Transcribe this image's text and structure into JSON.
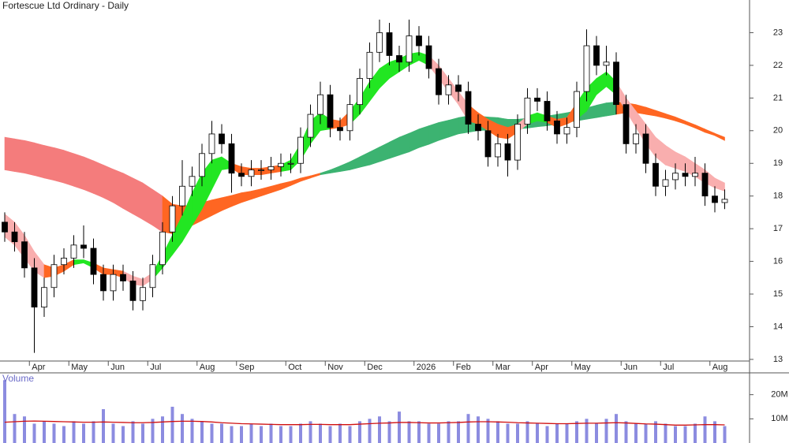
{
  "chart_data": [
    {
      "type": "candlestick",
      "title": "Fortescue Ltd Ordinary - Daily",
      "categories": [
        null,
        null,
        null,
        "Apr",
        null,
        null,
        null,
        "May",
        null,
        null,
        null,
        "Jun",
        null,
        null,
        null,
        "Jul",
        null,
        null,
        null,
        null,
        "Aug",
        null,
        null,
        null,
        "Sep",
        null,
        null,
        null,
        null,
        "Oct",
        null,
        null,
        null,
        "Nov",
        null,
        null,
        null,
        "Dec",
        null,
        null,
        null,
        null,
        "2026",
        null,
        null,
        null,
        "Feb",
        null,
        null,
        null,
        "Mar",
        null,
        null,
        null,
        "Apr",
        null,
        null,
        null,
        "May",
        null,
        null,
        null,
        null,
        "Jun",
        null,
        null,
        null,
        "Jul",
        null,
        null,
        null,
        null,
        "Aug",
        null
      ],
      "open": [
        17.2,
        16.9,
        16.6,
        15.8,
        14.6,
        15.2,
        15.9,
        16.1,
        16.5,
        16.4,
        15.6,
        15.1,
        15.6,
        15.4,
        14.8,
        15.2,
        15.9,
        16.9,
        17.7,
        18.3,
        18.6,
        19.3,
        19.9,
        19.6,
        18.7,
        18.6,
        18.8,
        18.8,
        18.9,
        19.0,
        19.0,
        19.8,
        20.5,
        21.1,
        20.1,
        20.0,
        20.8,
        21.6,
        22.4,
        23.0,
        22.3,
        22.1,
        22.9,
        22.6,
        21.9,
        21.1,
        21.4,
        21.2,
        20.2,
        20.0,
        19.2,
        19.6,
        19.1,
        20.2,
        21.0,
        20.9,
        20.3,
        19.9,
        20.1,
        21.2,
        22.6,
        22.0,
        22.1,
        20.8,
        19.6,
        19.9,
        19.0,
        18.3,
        18.5,
        18.7,
        18.6,
        18.7,
        18.0,
        17.8
      ],
      "high": [
        17.5,
        17.2,
        16.9,
        16.1,
        15.5,
        16.2,
        16.4,
        16.8,
        17.1,
        16.7,
        15.9,
        15.9,
        15.9,
        15.7,
        15.5,
        16.2,
        17.2,
        18.0,
        19.1,
        18.9,
        19.6,
        20.3,
        20.2,
        19.9,
        19.0,
        19.1,
        19.1,
        19.2,
        19.3,
        19.3,
        20.1,
        20.8,
        21.5,
        21.4,
        20.4,
        21.1,
        21.9,
        22.7,
        23.4,
        23.3,
        22.6,
        23.4,
        23.2,
        22.9,
        22.2,
        21.7,
        21.7,
        21.5,
        20.5,
        20.3,
        19.9,
        19.9,
        20.5,
        21.3,
        21.3,
        21.2,
        20.6,
        20.4,
        21.5,
        23.1,
        22.9,
        22.6,
        22.4,
        21.1,
        20.2,
        20.2,
        19.3,
        18.8,
        19.0,
        19.0,
        19.2,
        19.0,
        18.3,
        18.2
      ],
      "low": [
        16.6,
        16.3,
        15.5,
        13.2,
        14.3,
        14.9,
        15.6,
        15.8,
        16.1,
        15.3,
        14.8,
        14.8,
        15.1,
        14.5,
        14.5,
        14.9,
        15.6,
        16.6,
        17.4,
        18.0,
        18.3,
        19.0,
        19.3,
        18.1,
        18.3,
        18.3,
        18.5,
        18.5,
        18.6,
        18.7,
        18.7,
        19.5,
        20.2,
        19.8,
        19.7,
        19.7,
        20.5,
        21.3,
        22.1,
        22.0,
        21.8,
        21.8,
        22.3,
        21.6,
        20.8,
        20.8,
        20.9,
        19.9,
        19.7,
        18.9,
        18.9,
        18.6,
        18.8,
        19.9,
        20.6,
        20.0,
        19.6,
        19.6,
        19.8,
        20.9,
        21.7,
        21.7,
        20.5,
        19.3,
        19.3,
        18.7,
        18.0,
        18.0,
        18.2,
        18.3,
        18.3,
        17.7,
        17.5,
        17.6
      ],
      "close": [
        16.9,
        16.6,
        15.8,
        14.6,
        15.2,
        15.9,
        16.1,
        16.5,
        16.4,
        15.6,
        15.1,
        15.6,
        15.4,
        14.8,
        15.2,
        15.9,
        16.9,
        17.7,
        18.3,
        18.6,
        19.3,
        19.9,
        19.6,
        18.7,
        18.6,
        18.8,
        18.8,
        18.9,
        19.0,
        19.0,
        19.8,
        20.5,
        21.1,
        20.1,
        20.0,
        20.8,
        21.6,
        22.4,
        23.0,
        22.3,
        22.1,
        22.9,
        22.6,
        21.9,
        21.1,
        21.4,
        21.2,
        20.2,
        20.0,
        19.2,
        19.6,
        19.1,
        20.2,
        21.0,
        20.9,
        20.3,
        19.9,
        20.1,
        21.2,
        22.6,
        22.0,
        22.1,
        20.8,
        19.6,
        19.9,
        19.0,
        18.3,
        18.5,
        18.7,
        18.6,
        18.7,
        18.0,
        17.8,
        17.9
      ],
      "up_color": "#ffffff",
      "down_color": "#000000",
      "ribbons": [
        {
          "upper": [
            19.8,
            19.75,
            19.7,
            19.63,
            19.55,
            19.48,
            19.4,
            19.3,
            19.2,
            19.08,
            18.95,
            18.82,
            18.7,
            18.55,
            18.4,
            18.2,
            18.0,
            17.75,
            17.7,
            17.72,
            17.8,
            17.88,
            17.95,
            18.02,
            18.1,
            18.15,
            18.22,
            18.3,
            18.38,
            18.45,
            18.55,
            18.62,
            18.7,
            18.8,
            18.92,
            19.05,
            19.2,
            19.35,
            19.5,
            19.65,
            19.8,
            19.92,
            20.05,
            20.15,
            20.25,
            20.32,
            20.4,
            20.45,
            20.45,
            20.42,
            20.4,
            20.35,
            20.35,
            20.38,
            20.4,
            20.45,
            20.5,
            20.55,
            20.62,
            20.7,
            20.78,
            20.85,
            20.88,
            20.85,
            20.8,
            20.72,
            20.62,
            20.52,
            20.42,
            20.3,
            20.18,
            20.05,
            19.92,
            19.8
          ],
          "lower": [
            18.8,
            18.75,
            18.7,
            18.63,
            18.55,
            18.48,
            18.4,
            18.3,
            18.2,
            18.08,
            17.95,
            17.8,
            17.62,
            17.45,
            17.28,
            17.1,
            16.9,
            16.85,
            16.95,
            17.1,
            17.25,
            17.4,
            17.55,
            17.68,
            17.8,
            17.9,
            18.0,
            18.1,
            18.2,
            18.32,
            18.45,
            18.55,
            18.65,
            18.7,
            18.75,
            18.8,
            18.88,
            18.95,
            19.05,
            19.15,
            19.25,
            19.35,
            19.48,
            19.58,
            19.7,
            19.8,
            19.9,
            19.95,
            20.0,
            20.02,
            20.05,
            20.05,
            20.05,
            20.08,
            20.12,
            20.15,
            20.2,
            20.25,
            20.3,
            20.35,
            20.4,
            20.45,
            20.5,
            20.55,
            20.55,
            20.5,
            20.45,
            20.38,
            20.3,
            20.2,
            20.08,
            19.95,
            19.85,
            19.7
          ],
          "colors": [
            "#f47c7c",
            "#f47c7c",
            "#f47c7c",
            "#f47c7c",
            "#f47c7c",
            "#f47c7c",
            "#f47c7c",
            "#f47c7c",
            "#f47c7c",
            "#f47c7c",
            "#f47c7c",
            "#f47c7c",
            "#f47c7c",
            "#f47c7c",
            "#f47c7c",
            "#f47c7c",
            "#ff6622",
            "#ff6622",
            "#ff6622",
            "#ff6622",
            "#ff6622",
            "#ff6622",
            "#ff6622",
            "#ff6622",
            "#ff6622",
            "#ff6622",
            "#ff6622",
            "#ff6622",
            "#ff6622",
            "#ff6622",
            "#ff6622",
            "#ff6622",
            "#3cb371",
            "#3cb371",
            "#3cb371",
            "#3cb371",
            "#3cb371",
            "#3cb371",
            "#3cb371",
            "#3cb371",
            "#3cb371",
            "#3cb371",
            "#3cb371",
            "#3cb371",
            "#3cb371",
            "#3cb371",
            "#3cb371",
            "#3cb371",
            "#3cb371",
            "#3cb371",
            "#3cb371",
            "#3cb371",
            "#3cb371",
            "#3cb371",
            "#3cb371",
            "#3cb371",
            "#3cb371",
            "#3cb371",
            "#3cb371",
            "#3cb371",
            "#3cb371",
            "#3cb371",
            "#ff6622",
            "#ff6622",
            "#ff6622",
            "#ff6622",
            "#ff6622",
            "#ff6622",
            "#ff6622",
            "#ff6622",
            "#ff6622",
            "#ff6622",
            "#ff6622"
          ]
        },
        {
          "upper": [
            17.45,
            17.2,
            16.8,
            16.3,
            15.9,
            15.8,
            15.9,
            16.05,
            16.05,
            15.95,
            15.8,
            15.75,
            15.7,
            15.55,
            15.45,
            15.65,
            16.2,
            16.8,
            17.4,
            18.1,
            18.7,
            19.1,
            19.2,
            19.0,
            18.9,
            18.85,
            18.85,
            18.9,
            18.95,
            19.1,
            19.6,
            20.3,
            20.55,
            20.35,
            20.3,
            20.6,
            21.0,
            21.5,
            21.9,
            22.1,
            22.2,
            22.35,
            22.4,
            22.3,
            22.0,
            21.6,
            21.2,
            20.8,
            20.55,
            20.35,
            20.2,
            20.1,
            20.2,
            20.45,
            20.55,
            20.45,
            20.35,
            20.4,
            20.85,
            21.3,
            21.6,
            21.8,
            21.5,
            21.0,
            20.6,
            20.2,
            19.8,
            19.55,
            19.35,
            19.2,
            19.0,
            18.8,
            18.55,
            18.4
          ],
          "lower": [
            16.75,
            16.5,
            16.1,
            15.7,
            15.5,
            15.55,
            15.7,
            15.9,
            15.95,
            15.8,
            15.6,
            15.6,
            15.5,
            15.3,
            15.25,
            15.45,
            15.8,
            16.2,
            16.6,
            17.1,
            17.6,
            18.2,
            18.8,
            18.85,
            18.65,
            18.65,
            18.65,
            18.7,
            18.75,
            18.8,
            19.1,
            19.6,
            20.0,
            20.05,
            20.1,
            20.2,
            20.5,
            20.9,
            21.3,
            21.6,
            21.8,
            22.0,
            22.15,
            22.0,
            21.6,
            21.2,
            20.8,
            20.3,
            20.2,
            20.0,
            19.8,
            19.75,
            19.95,
            20.2,
            20.3,
            20.25,
            20.1,
            20.2,
            20.35,
            20.6,
            21.1,
            21.35,
            21.1,
            20.6,
            20.1,
            19.6,
            19.2,
            18.95,
            18.85,
            18.75,
            18.6,
            18.4,
            18.25,
            18.15
          ],
          "colors": [
            "#f9aeae",
            "#f9aeae",
            "#f9aeae",
            "#f9aeae",
            "#ff6622",
            "#ff6622",
            "#ff6622",
            "#22e622",
            "#22e622",
            "#ff6622",
            "#ff6622",
            "#ff6622",
            "#f9aeae",
            "#f9aeae",
            "#f9aeae",
            "#22e622",
            "#22e622",
            "#22e622",
            "#22e622",
            "#22e622",
            "#22e622",
            "#22e622",
            "#22e622",
            "#ff6622",
            "#ff6622",
            "#ff6622",
            "#ff6622",
            "#ff6622",
            "#22e622",
            "#22e622",
            "#22e622",
            "#22e622",
            "#22e622",
            "#ff6622",
            "#ff6622",
            "#22e622",
            "#22e622",
            "#22e622",
            "#22e622",
            "#22e622",
            "#22e622",
            "#22e622",
            "#22e622",
            "#f9aeae",
            "#f9aeae",
            "#f9aeae",
            "#f9aeae",
            "#ff6622",
            "#ff6622",
            "#ff6622",
            "#ff6622",
            "#ff6622",
            "#f9aeae",
            "#22e622",
            "#22e622",
            "#ff6622",
            "#ff6622",
            "#ff6622",
            "#22e622",
            "#22e622",
            "#22e622",
            "#22e622",
            "#f9aeae",
            "#f9aeae",
            "#f9aeae",
            "#f9aeae",
            "#f9aeae",
            "#f9aeae",
            "#f9aeae",
            "#f9aeae",
            "#f9aeae",
            "#f9aeae",
            "#f9aeae"
          ]
        }
      ],
      "ylim": [
        12.95,
        24.0
      ],
      "yticks": [
        13,
        14,
        15,
        16,
        17,
        18,
        19,
        20,
        21,
        22,
        23
      ]
    },
    {
      "type": "bar",
      "title": "Volume",
      "values": [
        26,
        12,
        11,
        8,
        9,
        8,
        7,
        9,
        8,
        9,
        14,
        8,
        7,
        9,
        8,
        10,
        11,
        15,
        12,
        10,
        9,
        8,
        8,
        7,
        7,
        8,
        7,
        8,
        7,
        7,
        8,
        9,
        8,
        7,
        8,
        7,
        9,
        10,
        11,
        9,
        13,
        9,
        9,
        8,
        8,
        9,
        9,
        12,
        11,
        10,
        9,
        8,
        8,
        9,
        8,
        7,
        8,
        8,
        9,
        10,
        8,
        10,
        12,
        9,
        8,
        8,
        9,
        8,
        7,
        7,
        8,
        11,
        9,
        7
      ],
      "color": "#8c8ce0",
      "average": {
        "values": [
          8.6,
          8.8,
          9.0,
          9.1,
          9.0,
          8.9,
          8.8,
          8.7,
          8.6,
          8.6,
          8.7,
          8.6,
          8.5,
          8.4,
          8.4,
          8.5,
          8.7,
          8.9,
          9.0,
          9.0,
          8.9,
          8.7,
          8.4,
          8.2,
          8.0,
          7.9,
          7.8,
          7.7,
          7.6,
          7.6,
          7.6,
          7.7,
          7.7,
          7.6,
          7.6,
          7.6,
          7.8,
          8.0,
          8.2,
          8.3,
          8.5,
          8.5,
          8.4,
          8.3,
          8.3,
          8.4,
          8.5,
          8.7,
          8.8,
          8.8,
          8.7,
          8.6,
          8.4,
          8.3,
          8.2,
          8.1,
          8.0,
          8.0,
          8.1,
          8.2,
          8.2,
          8.3,
          8.4,
          8.3,
          8.1,
          7.9,
          7.8,
          7.6,
          7.4,
          7.4,
          7.5,
          7.6,
          7.6,
          7.5
        ],
        "color": "#d01010"
      },
      "ylim": [
        0,
        28.7
      ],
      "yticks": [
        {
          "value": 10,
          "label": "10M"
        },
        {
          "value": 20,
          "label": "20M"
        }
      ]
    }
  ]
}
